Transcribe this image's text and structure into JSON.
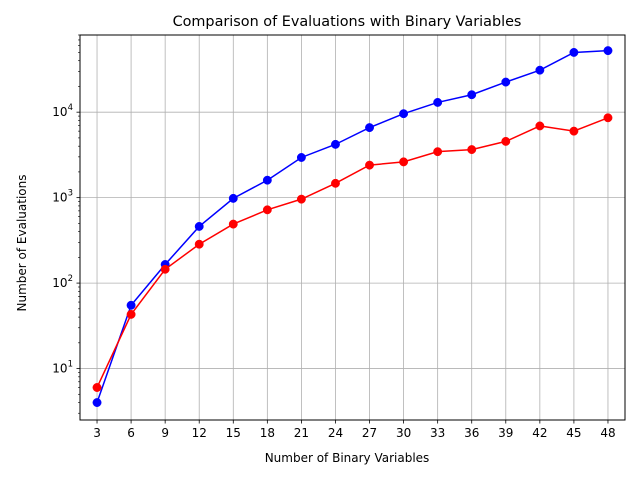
{
  "chart_data": {
    "type": "line",
    "title": "Comparison of Evaluations with Binary Variables",
    "xlabel": "Number of Binary Variables",
    "ylabel": "Number of Evaluations",
    "yscale": "log",
    "grid": true,
    "x": [
      3,
      6,
      9,
      12,
      15,
      18,
      21,
      24,
      27,
      30,
      33,
      36,
      39,
      42,
      45,
      48
    ],
    "x_tick_labels": [
      "3",
      "6",
      "9",
      "12",
      "15",
      "18",
      "21",
      "24",
      "27",
      "30",
      "33",
      "36",
      "39",
      "42",
      "45",
      "48"
    ],
    "y_ticks": [
      10,
      100,
      1000,
      10000
    ],
    "y_tick_labels": [
      {
        "base": "10",
        "exp": "1"
      },
      {
        "base": "10",
        "exp": "2"
      },
      {
        "base": "10",
        "exp": "3"
      },
      {
        "base": "10",
        "exp": "4"
      }
    ],
    "ylim": [
      2.5,
      80000
    ],
    "xlim": [
      1.5,
      49.5
    ],
    "series": [
      {
        "color": "#0000ff",
        "values": [
          4,
          55,
          165,
          460,
          980,
          1600,
          2950,
          4200,
          6600,
          9600,
          13000,
          16000,
          22500,
          31000,
          50000,
          52500
        ]
      },
      {
        "color": "#ff0000",
        "values": [
          6,
          43,
          145,
          285,
          490,
          720,
          960,
          1470,
          2400,
          2620,
          3450,
          3650,
          4550,
          6900,
          6000,
          8600
        ]
      }
    ]
  }
}
